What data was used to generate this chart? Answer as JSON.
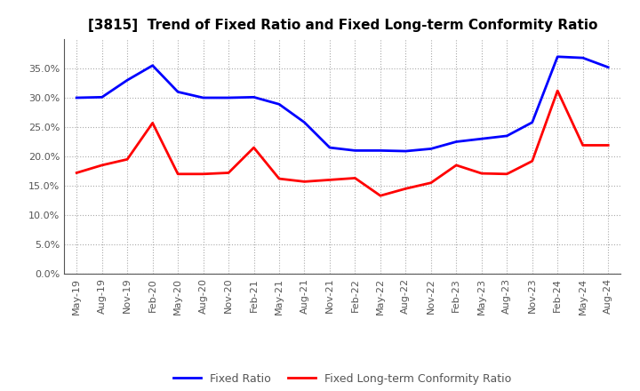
{
  "title": "[3815]  Trend of Fixed Ratio and Fixed Long-term Conformity Ratio",
  "x_labels": [
    "May-19",
    "Aug-19",
    "Nov-19",
    "Feb-20",
    "May-20",
    "Aug-20",
    "Nov-20",
    "Feb-21",
    "May-21",
    "Aug-21",
    "Nov-21",
    "Feb-22",
    "May-22",
    "Aug-22",
    "Nov-22",
    "Feb-23",
    "May-23",
    "Aug-23",
    "Nov-23",
    "Feb-24",
    "May-24",
    "Aug-24"
  ],
  "fixed_ratio": [
    0.3,
    0.301,
    0.33,
    0.355,
    0.31,
    0.3,
    0.3,
    0.301,
    0.289,
    0.258,
    0.215,
    0.21,
    0.21,
    0.209,
    0.213,
    0.225,
    0.23,
    0.235,
    0.258,
    0.37,
    0.368,
    0.352
  ],
  "fixed_lt_ratio": [
    0.172,
    0.185,
    0.195,
    0.257,
    0.17,
    0.17,
    0.172,
    0.215,
    0.162,
    0.157,
    0.16,
    0.163,
    0.133,
    0.145,
    0.155,
    0.185,
    0.171,
    0.17,
    0.192,
    0.312,
    0.219,
    0.219
  ],
  "fixed_ratio_color": "#0000FF",
  "fixed_lt_ratio_color": "#FF0000",
  "background_color": "#FFFFFF",
  "grid_color": "#AAAAAA",
  "ylim": [
    0.0,
    0.4
  ],
  "yticks": [
    0.0,
    0.05,
    0.1,
    0.15,
    0.2,
    0.25,
    0.3,
    0.35
  ],
  "legend_labels": [
    "Fixed Ratio",
    "Fixed Long-term Conformity Ratio"
  ],
  "title_fontsize": 11,
  "tick_fontsize": 8,
  "legend_fontsize": 9
}
